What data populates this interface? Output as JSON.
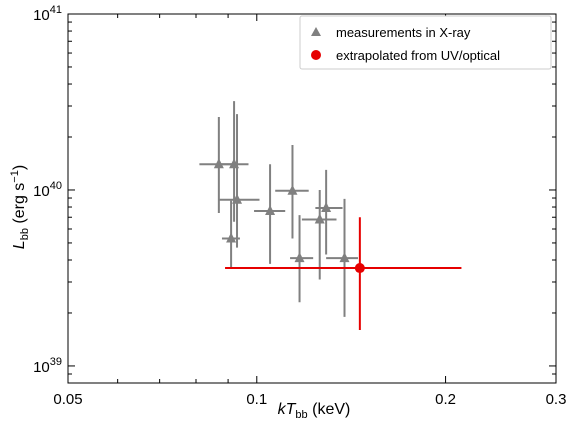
{
  "chart_data": {
    "type": "scatter",
    "xscale": "log",
    "yscale": "log",
    "xlim": [
      0.05,
      0.3
    ],
    "ylim": [
      8e+38,
      1e+41
    ],
    "grid": false,
    "legend_placement": "top-right",
    "xlabel": {
      "prefix": "k",
      "main": "T",
      "sub": "bb",
      "suffix": " (keV)"
    },
    "ylabel": {
      "main": "L",
      "sub": "bb",
      "suffix": " (erg s",
      "sup": "−1",
      "close": ")"
    },
    "x_ticks": [
      {
        "value": 0.05,
        "label": "0.05"
      },
      {
        "value": 0.1,
        "label": "0.1"
      },
      {
        "value": 0.2,
        "label": "0.2"
      },
      {
        "value": 0.3,
        "label": "0.3"
      }
    ],
    "y_ticks": [
      {
        "value": 1e+39,
        "base": "10",
        "exp": "39"
      },
      {
        "value": 1e+40,
        "base": "10",
        "exp": "40"
      },
      {
        "value": 1e+41,
        "base": "10",
        "exp": "41"
      }
    ],
    "series": [
      {
        "name": "measurements in X-ray",
        "marker": "triangle",
        "color": "#808080",
        "points": [
          {
            "x": 0.087,
            "xlo": 0.081,
            "xhi": 0.093,
            "y": 1.4e+40,
            "ylo": 7.4e+39,
            "yhi": 2.6e+40
          },
          {
            "x": 0.092,
            "xlo": 0.087,
            "xhi": 0.097,
            "y": 1.4e+40,
            "ylo": 6.6e+39,
            "yhi": 3.2e+40
          },
          {
            "x": 0.093,
            "xlo": 0.087,
            "xhi": 0.101,
            "y": 8.8e+39,
            "ylo": 4.7e+39,
            "yhi": 2.7e+40
          },
          {
            "x": 0.091,
            "xlo": 0.088,
            "xhi": 0.094,
            "y": 5.3e+39,
            "ylo": 3.6e+39,
            "yhi": 8.7e+39
          },
          {
            "x": 0.105,
            "xlo": 0.099,
            "xhi": 0.111,
            "y": 7.6e+39,
            "ylo": 3.8e+39,
            "yhi": 1.4e+40
          },
          {
            "x": 0.114,
            "xlo": 0.107,
            "xhi": 0.121,
            "y": 9.9e+39,
            "ylo": 5.3e+39,
            "yhi": 1.8e+40
          },
          {
            "x": 0.117,
            "xlo": 0.113,
            "xhi": 0.123,
            "y": 4.1e+39,
            "ylo": 2.3e+39,
            "yhi": 7.2e+39
          },
          {
            "x": 0.126,
            "xlo": 0.118,
            "xhi": 0.134,
            "y": 6.8e+39,
            "ylo": 3.1e+39,
            "yhi": 1e+40
          },
          {
            "x": 0.129,
            "xlo": 0.124,
            "xhi": 0.137,
            "y": 7.9e+39,
            "ylo": 4.3e+39,
            "yhi": 1.3e+40
          },
          {
            "x": 0.138,
            "xlo": 0.129,
            "xhi": 0.145,
            "y": 4.1e+39,
            "ylo": 1.9e+39,
            "yhi": 8.9e+39
          }
        ]
      },
      {
        "name": "extrapolated from UV/optical",
        "marker": "circle",
        "color": "#e60000",
        "points": [
          {
            "x": 0.146,
            "xlo": 0.089,
            "xhi": 0.212,
            "y": 3.6e+39,
            "ylo": 1.6e+39,
            "yhi": 7e+39
          }
        ]
      }
    ]
  }
}
